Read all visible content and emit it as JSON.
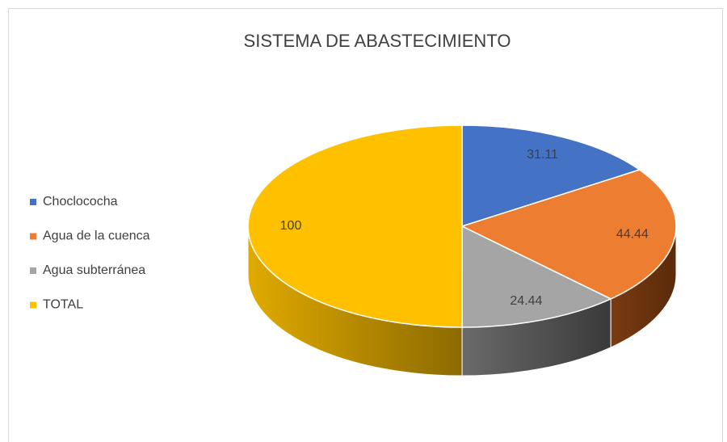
{
  "chart_data": {
    "type": "pie3d",
    "title": "SISTEMA DE ABASTECIMIENTO",
    "categories": [
      "Choclococha",
      "Agua de la cuenca",
      "Agua subterránea",
      "TOTAL"
    ],
    "values": [
      31.11,
      44.44,
      24.44,
      100
    ],
    "colors": [
      "#4472c4",
      "#ed7d31",
      "#a5a5a5",
      "#ffc000"
    ],
    "legend": "left"
  }
}
